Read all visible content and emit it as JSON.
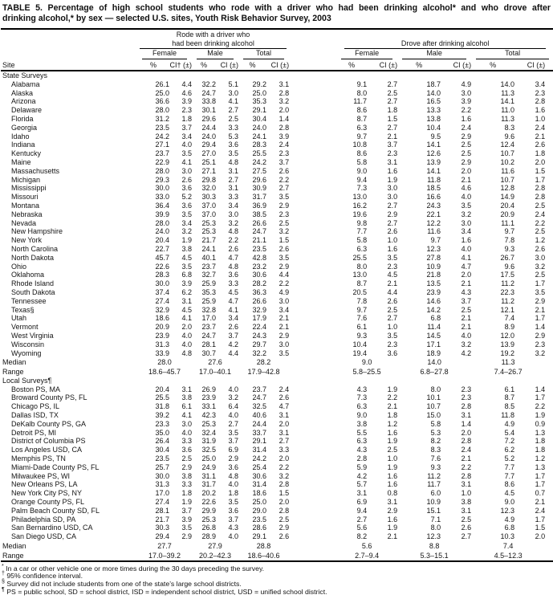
{
  "title": {
    "line1": "TABLE 5. Percentage of high school students who rode with a driver who had been drinking alcohol* and who drove after",
    "line2": "drinking alcohol,* by sex — selected U.S. sites, Youth Risk Behavior Survey, 2003"
  },
  "table": {
    "header": {
      "site_label": "Site",
      "rode_group_line1": "Rode with a driver who",
      "rode_group_line2": "had been drinking alcohol",
      "drove_group": "Drove after drinking alcohol",
      "subgroups": [
        "Female",
        "Male",
        "Total"
      ],
      "col_pct": "%",
      "col_ci_first": "CI† (±)",
      "col_ci": "CI (±)"
    },
    "sections": [
      {
        "label": "State Surveys",
        "rows": [
          [
            "Alabama",
            "26.1",
            "4.4",
            "32.2",
            "5.1",
            "29.2",
            "3.1",
            "9.1",
            "2.7",
            "18.7",
            "4.9",
            "14.0",
            "3.4"
          ],
          [
            "Alaska",
            "25.0",
            "4.6",
            "24.7",
            "3.0",
            "25.0",
            "2.8",
            "8.0",
            "2.5",
            "14.0",
            "3.0",
            "11.3",
            "2.3"
          ],
          [
            "Arizona",
            "36.6",
            "3.9",
            "33.8",
            "4.1",
            "35.3",
            "3.2",
            "11.7",
            "2.7",
            "16.5",
            "3.9",
            "14.1",
            "2.8"
          ],
          [
            "Delaware",
            "28.0",
            "2.3",
            "30.1",
            "2.7",
            "29.1",
            "2.0",
            "8.6",
            "1.8",
            "13.3",
            "2.2",
            "11.0",
            "1.6"
          ],
          [
            "Florida",
            "31.2",
            "1.8",
            "29.6",
            "2.5",
            "30.4",
            "1.4",
            "8.7",
            "1.5",
            "13.8",
            "1.6",
            "11.3",
            "1.0"
          ],
          [
            "Georgia",
            "23.5",
            "3.7",
            "24.4",
            "3.3",
            "24.0",
            "2.8",
            "6.3",
            "2.7",
            "10.4",
            "2.4",
            "8.3",
            "2.4"
          ],
          [
            "Idaho",
            "24.2",
            "3.4",
            "24.0",
            "5.3",
            "24.1",
            "3.9",
            "9.7",
            "2.1",
            "9.5",
            "2.9",
            "9.6",
            "2.1"
          ],
          [
            "Indiana",
            "27.1",
            "4.0",
            "29.4",
            "3.6",
            "28.3",
            "2.4",
            "10.8",
            "3.7",
            "14.1",
            "2.5",
            "12.4",
            "2.6"
          ],
          [
            "Kentucky",
            "23.7",
            "3.5",
            "27.0",
            "3.5",
            "25.5",
            "2.3",
            "8.6",
            "2.3",
            "12.6",
            "2.5",
            "10.7",
            "1.8"
          ],
          [
            "Maine",
            "22.9",
            "4.1",
            "25.1",
            "4.8",
            "24.2",
            "3.7",
            "5.8",
            "3.1",
            "13.9",
            "2.9",
            "10.2",
            "2.0"
          ],
          [
            "Massachusetts",
            "28.0",
            "3.0",
            "27.1",
            "3.1",
            "27.5",
            "2.6",
            "9.0",
            "1.6",
            "14.1",
            "2.0",
            "11.6",
            "1.5"
          ],
          [
            "Michigan",
            "29.3",
            "2.6",
            "29.8",
            "2.7",
            "29.6",
            "2.2",
            "9.4",
            "1.9",
            "11.8",
            "2.1",
            "10.7",
            "1.7"
          ],
          [
            "Mississippi",
            "30.0",
            "3.6",
            "32.0",
            "3.1",
            "30.9",
            "2.7",
            "7.3",
            "3.0",
            "18.5",
            "4.6",
            "12.8",
            "2.8"
          ],
          [
            "Missouri",
            "33.0",
            "5.2",
            "30.3",
            "3.3",
            "31.7",
            "3.5",
            "13.0",
            "3.0",
            "16.6",
            "4.0",
            "14.9",
            "2.8"
          ],
          [
            "Montana",
            "36.4",
            "3.6",
            "37.0",
            "3.4",
            "36.9",
            "2.9",
            "16.2",
            "2.7",
            "24.3",
            "3.5",
            "20.4",
            "2.5"
          ],
          [
            "Nebraska",
            "39.9",
            "3.5",
            "37.0",
            "3.0",
            "38.5",
            "2.3",
            "19.6",
            "2.9",
            "22.1",
            "3.2",
            "20.9",
            "2.4"
          ],
          [
            "Nevada",
            "28.0",
            "3.4",
            "25.3",
            "3.2",
            "26.6",
            "2.5",
            "9.8",
            "2.7",
            "12.2",
            "3.0",
            "11.1",
            "2.2"
          ],
          [
            "New Hampshire",
            "24.0",
            "3.2",
            "25.3",
            "4.8",
            "24.7",
            "3.2",
            "7.7",
            "2.6",
            "11.6",
            "3.4",
            "9.7",
            "2.5"
          ],
          [
            "New York",
            "20.4",
            "1.9",
            "21.7",
            "2.2",
            "21.1",
            "1.5",
            "5.8",
            "1.0",
            "9.7",
            "1.6",
            "7.8",
            "1.2"
          ],
          [
            "North Carolina",
            "22.7",
            "3.8",
            "24.1",
            "2.6",
            "23.5",
            "2.6",
            "6.3",
            "1.6",
            "12.3",
            "4.0",
            "9.3",
            "2.6"
          ],
          [
            "North Dakota",
            "45.7",
            "4.5",
            "40.1",
            "4.7",
            "42.8",
            "3.5",
            "25.5",
            "3.5",
            "27.8",
            "4.1",
            "26.7",
            "3.0"
          ],
          [
            "Ohio",
            "22.6",
            "3.5",
            "23.7",
            "4.8",
            "23.2",
            "2.9",
            "8.0",
            "2.3",
            "10.9",
            "4.7",
            "9.6",
            "3.2"
          ],
          [
            "Oklahoma",
            "28.3",
            "6.8",
            "32.7",
            "3.6",
            "30.6",
            "4.4",
            "13.0",
            "4.5",
            "21.8",
            "2.0",
            "17.5",
            "2.5"
          ],
          [
            "Rhode Island",
            "30.0",
            "3.9",
            "25.9",
            "3.3",
            "28.2",
            "2.2",
            "8.7",
            "2.1",
            "13.5",
            "2.1",
            "11.2",
            "1.7"
          ],
          [
            "South Dakota",
            "37.4",
            "6.2",
            "35.3",
            "4.5",
            "36.3",
            "4.9",
            "20.5",
            "4.4",
            "23.9",
            "4.3",
            "22.3",
            "3.5"
          ],
          [
            "Tennessee",
            "27.4",
            "3.1",
            "25.9",
            "4.7",
            "26.6",
            "3.0",
            "7.8",
            "2.6",
            "14.6",
            "3.7",
            "11.2",
            "2.9"
          ],
          [
            "Texas§",
            "32.9",
            "4.5",
            "32.8",
            "4.1",
            "32.9",
            "3.4",
            "9.7",
            "2.5",
            "14.2",
            "2.5",
            "12.1",
            "2.1"
          ],
          [
            "Utah",
            "18.6",
            "4.1",
            "17.0",
            "3.4",
            "17.9",
            "2.1",
            "7.6",
            "2.7",
            "6.8",
            "2.1",
            "7.4",
            "1.7"
          ],
          [
            "Vermont",
            "20.9",
            "2.0",
            "23.7",
            "2.6",
            "22.4",
            "2.1",
            "6.1",
            "1.0",
            "11.4",
            "2.1",
            "8.9",
            "1.4"
          ],
          [
            "West Virginia",
            "23.9",
            "4.0",
            "24.7",
            "3.7",
            "24.3",
            "2.9",
            "9.3",
            "3.5",
            "14.5",
            "4.0",
            "12.0",
            "2.9"
          ],
          [
            "Wisconsin",
            "31.3",
            "4.0",
            "28.1",
            "4.2",
            "29.7",
            "3.0",
            "10.4",
            "2.3",
            "17.1",
            "3.2",
            "13.9",
            "2.3"
          ],
          [
            "Wyoming",
            "33.9",
            "4.8",
            "30.7",
            "4.4",
            "32.2",
            "3.5",
            "19.4",
            "3.6",
            "18.9",
            "4.2",
            "19.2",
            "3.2"
          ]
        ],
        "summary": [
          [
            "Median",
            "28.0",
            "27.6",
            "28.2",
            "9.0",
            "14.0",
            "11.3"
          ],
          [
            "Range",
            "18.6–45.7",
            "17.0–40.1",
            "17.9–42.8",
            "5.8–25.5",
            "6.8–27.8",
            "7.4–26.7"
          ]
        ]
      },
      {
        "label": "Local Surveys¶",
        "rows": [
          [
            "Boston PS, MA",
            "20.4",
            "3.1",
            "26.9",
            "4.0",
            "23.7",
            "2.4",
            "4.3",
            "1.9",
            "8.0",
            "2.3",
            "6.1",
            "1.4"
          ],
          [
            "Broward County PS, FL",
            "25.5",
            "3.8",
            "23.9",
            "3.2",
            "24.7",
            "2.6",
            "7.3",
            "2.2",
            "10.1",
            "2.3",
            "8.7",
            "1.7"
          ],
          [
            "Chicago PS, IL",
            "31.8",
            "6.1",
            "33.1",
            "6.4",
            "32.5",
            "4.7",
            "6.3",
            "2.1",
            "10.7",
            "2.8",
            "8.5",
            "2.2"
          ],
          [
            "Dallas ISD, TX",
            "39.2",
            "4.1",
            "42.3",
            "4.0",
            "40.6",
            "3.1",
            "9.0",
            "1.8",
            "15.0",
            "3.1",
            "11.8",
            "1.9"
          ],
          [
            "DeKalb County PS, GA",
            "23.3",
            "3.0",
            "25.3",
            "2.7",
            "24.4",
            "2.0",
            "3.8",
            "1.2",
            "5.8",
            "1.4",
            "4.9",
            "0.9"
          ],
          [
            "Detroit PS, MI",
            "35.0",
            "4.0",
            "32.4",
            "3.5",
            "33.7",
            "3.1",
            "5.5",
            "1.6",
            "5.3",
            "2.0",
            "5.4",
            "1.3"
          ],
          [
            "District of Columbia PS",
            "26.4",
            "3.3",
            "31.9",
            "3.7",
            "29.1",
            "2.7",
            "6.3",
            "1.9",
            "8.2",
            "2.8",
            "7.2",
            "1.8"
          ],
          [
            "Los Angeles USD, CA",
            "30.4",
            "3.6",
            "32.5",
            "6.9",
            "31.4",
            "3.3",
            "4.3",
            "2.5",
            "8.3",
            "2.4",
            "6.2",
            "1.8"
          ],
          [
            "Memphis PS, TN",
            "23.5",
            "2.5",
            "25.0",
            "2.9",
            "24.2",
            "2.0",
            "2.8",
            "1.0",
            "7.6",
            "2.1",
            "5.2",
            "1.2"
          ],
          [
            "Miami-Dade County PS, FL",
            "25.7",
            "2.9",
            "24.9",
            "3.6",
            "25.4",
            "2.2",
            "5.9",
            "1.9",
            "9.3",
            "2.2",
            "7.7",
            "1.3"
          ],
          [
            "Milwaukee PS, WI",
            "30.0",
            "3.8",
            "31.1",
            "4.8",
            "30.6",
            "3.2",
            "4.2",
            "1.6",
            "11.2",
            "2.8",
            "7.7",
            "1.7"
          ],
          [
            "New Orleans PS, LA",
            "31.3",
            "3.3",
            "31.7",
            "4.0",
            "31.4",
            "2.8",
            "5.7",
            "1.6",
            "11.7",
            "3.1",
            "8.6",
            "1.7"
          ],
          [
            "New York City PS, NY",
            "17.0",
            "1.8",
            "20.2",
            "1.8",
            "18.6",
            "1.5",
            "3.1",
            "0.8",
            "6.0",
            "1.0",
            "4.5",
            "0.7"
          ],
          [
            "Orange County PS, FL",
            "27.4",
            "1.9",
            "22.6",
            "3.5",
            "25.0",
            "2.0",
            "6.9",
            "3.1",
            "10.9",
            "3.8",
            "9.0",
            "2.1"
          ],
          [
            "Palm Beach County SD, FL",
            "28.1",
            "3.7",
            "29.9",
            "3.6",
            "29.0",
            "2.8",
            "9.4",
            "2.9",
            "15.1",
            "3.1",
            "12.3",
            "2.4"
          ],
          [
            "Philadelphia SD, PA",
            "21.7",
            "3.9",
            "25.3",
            "3.7",
            "23.5",
            "2.5",
            "2.7",
            "1.6",
            "7.1",
            "2.5",
            "4.9",
            "1.7"
          ],
          [
            "San Bernardino USD, CA",
            "30.3",
            "3.5",
            "26.8",
            "4.3",
            "28.6",
            "2.9",
            "5.6",
            "1.9",
            "8.0",
            "2.6",
            "6.8",
            "1.5"
          ],
          [
            "San Diego USD, CA",
            "29.4",
            "2.9",
            "28.9",
            "4.0",
            "29.1",
            "2.6",
            "8.2",
            "2.1",
            "12.3",
            "2.7",
            "10.3",
            "2.0"
          ]
        ],
        "summary": [
          [
            "Median",
            "27.7",
            "27.9",
            "28.8",
            "5.6",
            "8.8",
            "7.4"
          ],
          [
            "Range",
            "17.0–39.2",
            "20.2–42.3",
            "18.6–40.6",
            "2.7–9.4",
            "5.3–15.1",
            "4.5–12.3"
          ]
        ]
      }
    ]
  },
  "footnotes": [
    {
      "marker": "*",
      "text": "In a car or other vehicle one or more times during the 30 days preceding the survey."
    },
    {
      "marker": "†",
      "text": "95% confidence interval."
    },
    {
      "marker": "§",
      "text": "Survey did not include students from one of the state’s large school districts."
    },
    {
      "marker": "¶",
      "text": "PS = public school, SD = school district, ISD = independent school district, USD = unified school district."
    }
  ]
}
